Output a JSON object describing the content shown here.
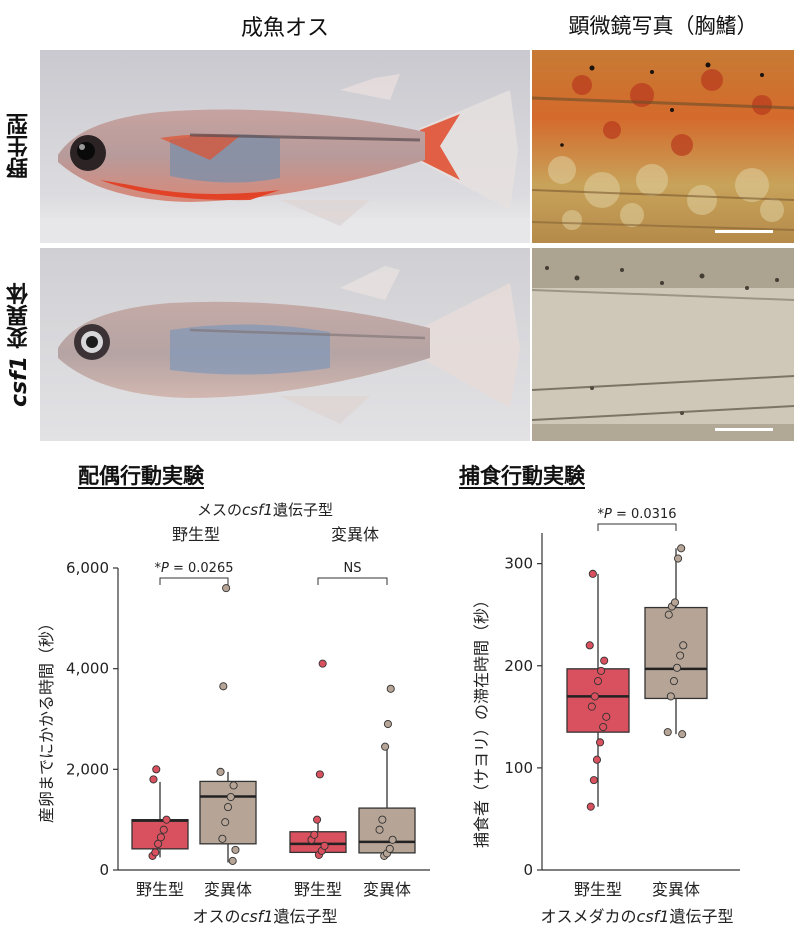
{
  "photos": {
    "col_fish": "成魚オス",
    "col_micro": "顕微鏡写真（胸鰭）",
    "row_wildtype": "野生型",
    "row_mutant_prefix": "csf1",
    "row_mutant_suffix": " 変異体"
  },
  "colors": {
    "wildtype": "#d9505e",
    "mutant": "#b6a596"
  },
  "chart_data": [
    {
      "type": "box",
      "title": "配偶行動実験",
      "subtitle_prefix": "メスの",
      "subtitle_italic": "csf1",
      "subtitle_suffix": "遺伝子型",
      "panel_labels": [
        "野生型",
        "変異体"
      ],
      "ylabel": "産卵までにかかる時間（秒）",
      "xlabel_prefix": "オスの",
      "xlabel_italic": "csf1",
      "xlabel_suffix": "遺伝子型",
      "yticks": [
        0,
        2000,
        4000,
        6000
      ],
      "ytick_labels": [
        "0",
        "2,000",
        "4,000",
        "6,000"
      ],
      "ylim": [
        0,
        6000
      ],
      "groups": [
        {
          "female": "野生型",
          "name": "野生型",
          "q1": 420,
          "median": 980,
          "q3": 1000,
          "whisker_low": 250,
          "whisker_high": 1750,
          "points": [
            280,
            350,
            520,
            650,
            800,
            1000,
            1800,
            2000
          ]
        },
        {
          "female": "野生型",
          "name": "変異体",
          "q1": 520,
          "median": 1460,
          "q3": 1760,
          "whisker_low": 150,
          "whisker_high": 1950,
          "points": [
            180,
            400,
            620,
            950,
            1250,
            1450,
            1680,
            1950,
            3650,
            5600
          ]
        },
        {
          "female": "変異体",
          "name": "野生型",
          "q1": 350,
          "median": 520,
          "q3": 760,
          "whisker_low": 250,
          "whisker_high": 1000,
          "points": [
            300,
            380,
            480,
            600,
            700,
            1000,
            1900,
            4100
          ]
        },
        {
          "female": "変異体",
          "name": "変異体",
          "q1": 340,
          "median": 560,
          "q3": 1230,
          "whisker_low": 270,
          "whisker_high": 2450,
          "points": [
            280,
            330,
            420,
            600,
            800,
            1000,
            2450,
            2900,
            3600
          ]
        }
      ],
      "comparisons": [
        {
          "label_prefix": "*",
          "label_italic": "P",
          "label_suffix": " = 0.0265"
        },
        {
          "label_prefix": "",
          "label_italic": "",
          "label_suffix": "NS"
        }
      ]
    },
    {
      "type": "box",
      "title": "捕食行動実験",
      "ylabel": "捕食者（サヨリ）の滞在時間（秒）",
      "xlabel_prefix": "オスメダカの",
      "xlabel_italic": "csf1",
      "xlabel_suffix": "遺伝子型",
      "yticks": [
        0,
        100,
        200,
        300
      ],
      "ytick_labels": [
        "0",
        "100",
        "200",
        "300"
      ],
      "ylim": [
        0,
        330
      ],
      "groups": [
        {
          "name": "野生型",
          "q1": 135,
          "median": 170,
          "q3": 197,
          "whisker_low": 62,
          "whisker_high": 290,
          "points": [
            62,
            88,
            108,
            125,
            140,
            150,
            160,
            170,
            185,
            195,
            205,
            220,
            290
          ]
        },
        {
          "name": "変異体",
          "q1": 168,
          "median": 197,
          "q3": 257,
          "whisker_low": 133,
          "whisker_high": 315,
          "points": [
            133,
            135,
            170,
            185,
            198,
            210,
            220,
            250,
            258,
            262,
            305,
            315
          ]
        }
      ],
      "comparisons": [
        {
          "label_prefix": "*",
          "label_italic": "P",
          "label_suffix": " = 0.0316"
        }
      ]
    }
  ]
}
